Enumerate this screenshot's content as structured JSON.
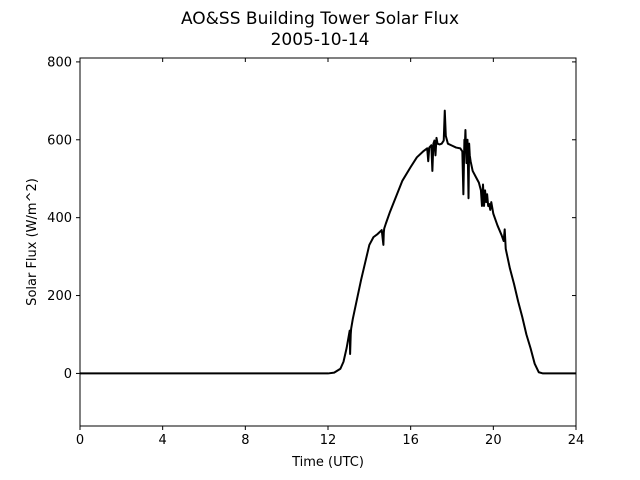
{
  "chart_data": {
    "type": "line",
    "title": "AO&SS Building Tower Solar Flux",
    "subtitle": "2005-10-14",
    "xlabel": "Time (UTC)",
    "ylabel": "Solar Flux (W/m^2)",
    "xlim": [
      0,
      24
    ],
    "ylim": [
      -135,
      810
    ],
    "xticks": [
      0,
      4,
      8,
      12,
      16,
      20,
      24
    ],
    "yticks": [
      0,
      200,
      400,
      600,
      800
    ],
    "grid": false,
    "legend": "none",
    "line_color": "#000000",
    "series": [
      {
        "x": [
          0,
          12.0,
          12.3,
          12.6,
          12.75,
          12.9,
          13.0,
          13.05,
          13.07,
          13.1,
          13.12,
          13.2,
          13.4,
          13.6,
          13.8,
          14.0,
          14.2,
          14.4,
          14.6,
          14.68,
          14.7,
          14.72,
          14.8,
          15.0,
          15.3,
          15.6,
          16.0,
          16.3,
          16.6,
          16.8,
          16.85,
          16.9,
          17.0,
          17.05,
          17.1,
          17.15,
          17.2,
          17.25,
          17.3,
          17.4,
          17.5,
          17.6,
          17.65,
          17.7,
          17.75,
          17.8,
          18.0,
          18.2,
          18.4,
          18.5,
          18.55,
          18.6,
          18.62,
          18.65,
          18.7,
          18.75,
          18.8,
          18.83,
          18.86,
          18.9,
          19.0,
          19.2,
          19.3,
          19.4,
          19.45,
          19.5,
          19.55,
          19.6,
          19.65,
          19.7,
          19.75,
          19.8,
          19.85,
          19.9,
          20.0,
          20.2,
          20.4,
          20.5,
          20.55,
          20.6,
          20.8,
          21.0,
          21.2,
          21.4,
          21.6,
          21.8,
          22.0,
          22.2,
          22.4,
          22.6,
          22.8,
          23.0,
          23.2,
          23.5,
          24.0
        ],
        "y": [
          0,
          0,
          2,
          12,
          30,
          65,
          95,
          110,
          50,
          100,
          115,
          140,
          190,
          240,
          285,
          330,
          350,
          358,
          368,
          330,
          362,
          372,
          385,
          415,
          455,
          495,
          530,
          555,
          570,
          578,
          545,
          580,
          586,
          520,
          590,
          598,
          560,
          605,
          590,
          588,
          590,
          598,
          675,
          610,
          600,
          590,
          585,
          580,
          578,
          570,
          460,
          600,
          580,
          625,
          540,
          600,
          450,
          590,
          560,
          545,
          520,
          500,
          490,
          470,
          430,
          485,
          430,
          470,
          440,
          460,
          430,
          435,
          420,
          440,
          410,
          380,
          355,
          340,
          370,
          320,
          270,
          230,
          185,
          145,
          100,
          65,
          25,
          3,
          0,
          0,
          0,
          0,
          0,
          0,
          0
        ]
      }
    ]
  }
}
